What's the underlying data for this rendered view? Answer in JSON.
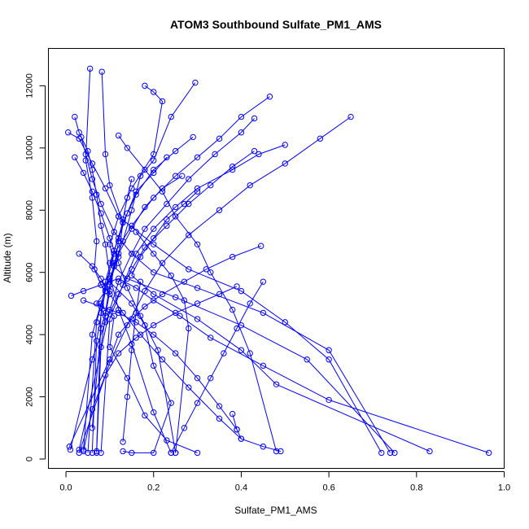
{
  "chart_data": {
    "type": "line",
    "title": "ATOM3 Southbound Sulfate_PM1_AMS",
    "xlabel": "Sulfate_PM1_AMS",
    "ylabel": "Altitude (m)",
    "xlim": [
      -0.04,
      1.0
    ],
    "ylim": [
      -300,
      13200
    ],
    "x_ticks": [
      0.0,
      0.2,
      0.4,
      0.6,
      0.8,
      1.0
    ],
    "x_tick_labels": [
      "0.0",
      "0.2",
      "0.4",
      "0.6",
      "0.8",
      "1.0"
    ],
    "y_ticks": [
      0,
      2000,
      4000,
      6000,
      8000,
      10000,
      12000
    ],
    "y_tick_labels": [
      "0",
      "2000",
      "4000",
      "6000",
      "8000",
      "10000",
      "12000"
    ],
    "grid": false,
    "marker": "open-circle",
    "color": "#0000ff",
    "series": [
      {
        "x": [
          0.055,
          0.045,
          0.06,
          0.07,
          0.065,
          0.08,
          0.09,
          0.07,
          0.11,
          0.1,
          0.14,
          0.18,
          0.23,
          0.3
        ],
        "y": [
          12550,
          9600,
          8400,
          7000,
          6100,
          5600,
          5400,
          5000,
          4600,
          3600,
          2600,
          1400,
          600,
          200
        ]
      },
      {
        "x": [
          0.082,
          0.09,
          0.1,
          0.13,
          0.12,
          0.1,
          0.15,
          0.18,
          0.2,
          0.24,
          0.2,
          0.15,
          0.13
        ],
        "y": [
          12450,
          9800,
          8800,
          7600,
          6500,
          5700,
          5000,
          4300,
          3000,
          1800,
          200,
          200,
          250
        ]
      },
      {
        "x": [
          0.18,
          0.2,
          0.22,
          0.2,
          0.15,
          0.12,
          0.1,
          0.11,
          0.09,
          0.07,
          0.06
        ],
        "y": [
          12000,
          11800,
          11500,
          9800,
          8700,
          7800,
          6900,
          6200,
          5400,
          3800,
          200
        ]
      },
      {
        "x": [
          0.295,
          0.24,
          0.2,
          0.17,
          0.15,
          0.13,
          0.11,
          0.1,
          0.09,
          0.08,
          0.06
        ],
        "y": [
          12100,
          11000,
          9600,
          9100,
          8000,
          7000,
          6300,
          5600,
          4700,
          4200,
          1000
        ]
      },
      {
        "x": [
          0.02,
          0.03,
          0.05,
          0.06,
          0.07,
          0.08,
          0.09,
          0.1,
          0.12,
          0.15,
          0.2,
          0.24
        ],
        "y": [
          11000,
          10500,
          9900,
          9300,
          8500,
          7500,
          6900,
          5900,
          4800,
          3700,
          1500,
          200
        ]
      },
      {
        "x": [
          0.465,
          0.4,
          0.35,
          0.3,
          0.25,
          0.2,
          0.15,
          0.11,
          0.09,
          0.07,
          0.05
        ],
        "y": [
          11650,
          11000,
          10300,
          9700,
          9100,
          8400,
          7500,
          6600,
          5500,
          4400,
          200
        ]
      },
      {
        "x": [
          0.65,
          0.58,
          0.5,
          0.42,
          0.35,
          0.28,
          0.22,
          0.18,
          0.14,
          0.1,
          0.03
        ],
        "y": [
          11000,
          10300,
          9500,
          8800,
          8000,
          7200,
          6300,
          5400,
          4300,
          3100,
          200
        ]
      },
      {
        "x": [
          0.005,
          0.03,
          0.06,
          0.09,
          0.12,
          0.2,
          0.28,
          0.4,
          0.5,
          0.6,
          0.72
        ],
        "y": [
          10500,
          10300,
          9500,
          8700,
          7800,
          6900,
          6100,
          5400,
          4400,
          3200,
          200
        ]
      },
      {
        "x": [
          0.5,
          0.44,
          0.38,
          0.3,
          0.25,
          0.2,
          0.16,
          0.13,
          0.1,
          0.08
        ],
        "y": [
          10100,
          9800,
          9300,
          8700,
          8100,
          7400,
          6600,
          5600,
          4500,
          200
        ]
      },
      {
        "x": [
          0.035,
          0.045,
          0.06,
          0.08,
          0.11,
          0.15,
          0.2,
          0.3,
          0.45,
          0.6,
          0.74
        ],
        "y": [
          10350,
          9800,
          9000,
          8200,
          7300,
          6600,
          6000,
          5500,
          4700,
          3500,
          200
        ]
      },
      {
        "x": [
          0.12,
          0.14,
          0.18,
          0.22,
          0.25,
          0.3,
          0.33,
          0.38,
          0.42,
          0.48
        ],
        "y": [
          10400,
          10000,
          9300,
          8600,
          7800,
          6900,
          6000,
          4800,
          3400,
          250
        ]
      },
      {
        "x": [
          0.29,
          0.25,
          0.2,
          0.16,
          0.13,
          0.11,
          0.09,
          0.08,
          0.07
        ],
        "y": [
          10350,
          9900,
          9300,
          8500,
          7600,
          6700,
          5700,
          4700,
          250
        ]
      },
      {
        "x": [
          0.43,
          0.4,
          0.34,
          0.28,
          0.23,
          0.18,
          0.15,
          0.12,
          0.1,
          0.03
        ],
        "y": [
          10950,
          10500,
          9800,
          9000,
          8200,
          7400,
          6600,
          5700,
          4800,
          300
        ]
      },
      {
        "x": [
          0.02,
          0.04,
          0.06,
          0.08,
          0.1,
          0.12,
          0.14,
          0.17,
          0.21,
          0.25
        ],
        "y": [
          9700,
          9200,
          8600,
          7900,
          7100,
          6300,
          5500,
          4600,
          3500,
          200
        ]
      },
      {
        "x": [
          0.43,
          0.38,
          0.33,
          0.28,
          0.23,
          0.18,
          0.15,
          0.12,
          0.09,
          0.06,
          0.01
        ],
        "y": [
          9900,
          9400,
          8800,
          8200,
          7500,
          6800,
          6100,
          5300,
          4400,
          3200,
          300
        ]
      },
      {
        "x": [
          0.23,
          0.2,
          0.16,
          0.14,
          0.12,
          0.1,
          0.14,
          0.25,
          0.4,
          0.55,
          0.75
        ],
        "y": [
          9700,
          9200,
          8600,
          7900,
          7100,
          6300,
          5800,
          5200,
          4300,
          3200,
          200
        ]
      },
      {
        "x": [
          0.265,
          0.22,
          0.18,
          0.15,
          0.12,
          0.1,
          0.08,
          0.06,
          0.04
        ],
        "y": [
          9100,
          8700,
          8100,
          7400,
          6600,
          5800,
          5000,
          4000,
          300
        ]
      },
      {
        "x": [
          0.15,
          0.14,
          0.13,
          0.12,
          0.11,
          0.1,
          0.09,
          0.08,
          0.07
        ],
        "y": [
          9000,
          8400,
          7700,
          7000,
          6200,
          5400,
          4600,
          3600,
          200
        ]
      },
      {
        "x": [
          0.3,
          0.27,
          0.23,
          0.2,
          0.17,
          0.15,
          0.2,
          0.3,
          0.4,
          0.48,
          0.83
        ],
        "y": [
          8600,
          8200,
          7700,
          7100,
          6500,
          5900,
          5300,
          4500,
          3500,
          2400,
          250
        ]
      },
      {
        "x": [
          0.445,
          0.38,
          0.32,
          0.27,
          0.22,
          0.18,
          0.15,
          0.12,
          0.1,
          0.008
        ],
        "y": [
          6850,
          6500,
          6100,
          5700,
          5300,
          4900,
          4500,
          4000,
          3200,
          400
        ]
      },
      {
        "x": [
          0.012,
          0.04,
          0.08,
          0.12,
          0.16,
          0.2,
          0.26,
          0.33,
          0.45,
          0.6,
          0.965
        ],
        "y": [
          5250,
          5400,
          5600,
          5800,
          5500,
          5100,
          4600,
          3900,
          3000,
          1900,
          200
        ]
      },
      {
        "x": [
          0.39,
          0.35,
          0.3,
          0.25,
          0.2,
          0.16,
          0.12,
          0.09,
          0.06,
          0.04
        ],
        "y": [
          5550,
          5300,
          5000,
          4700,
          4300,
          3900,
          3400,
          2700,
          1600,
          250
        ]
      },
      {
        "x": [
          0.45,
          0.42,
          0.39,
          0.36,
          0.33,
          0.3,
          0.27,
          0.24
        ],
        "y": [
          5700,
          5000,
          4200,
          3400,
          2600,
          1800,
          1000,
          200
        ]
      },
      {
        "x": [
          0.04,
          0.08,
          0.12,
          0.16,
          0.2,
          0.25,
          0.3,
          0.35,
          0.39
        ],
        "y": [
          5100,
          4900,
          4700,
          4400,
          4000,
          3400,
          2600,
          1700,
          950
        ]
      },
      {
        "x": [
          0.03,
          0.06,
          0.08,
          0.1,
          0.13,
          0.17,
          0.22,
          0.28,
          0.35,
          0.4
        ],
        "y": [
          6600,
          6200,
          5800,
          5300,
          4700,
          4000,
          3200,
          2300,
          1300,
          650
        ]
      },
      {
        "x": [
          0.38,
          0.39,
          0.4,
          0.45,
          0.49
        ],
        "y": [
          1450,
          950,
          650,
          400,
          250
        ]
      },
      {
        "x": [
          0.16,
          0.2,
          0.24,
          0.27,
          0.28,
          0.25
        ],
        "y": [
          7300,
          6600,
          5900,
          5100,
          4200,
          200
        ]
      },
      {
        "x": [
          0.17,
          0.16,
          0.15,
          0.14,
          0.13
        ],
        "y": [
          5700,
          4700,
          3500,
          2000,
          550
        ]
      }
    ]
  }
}
